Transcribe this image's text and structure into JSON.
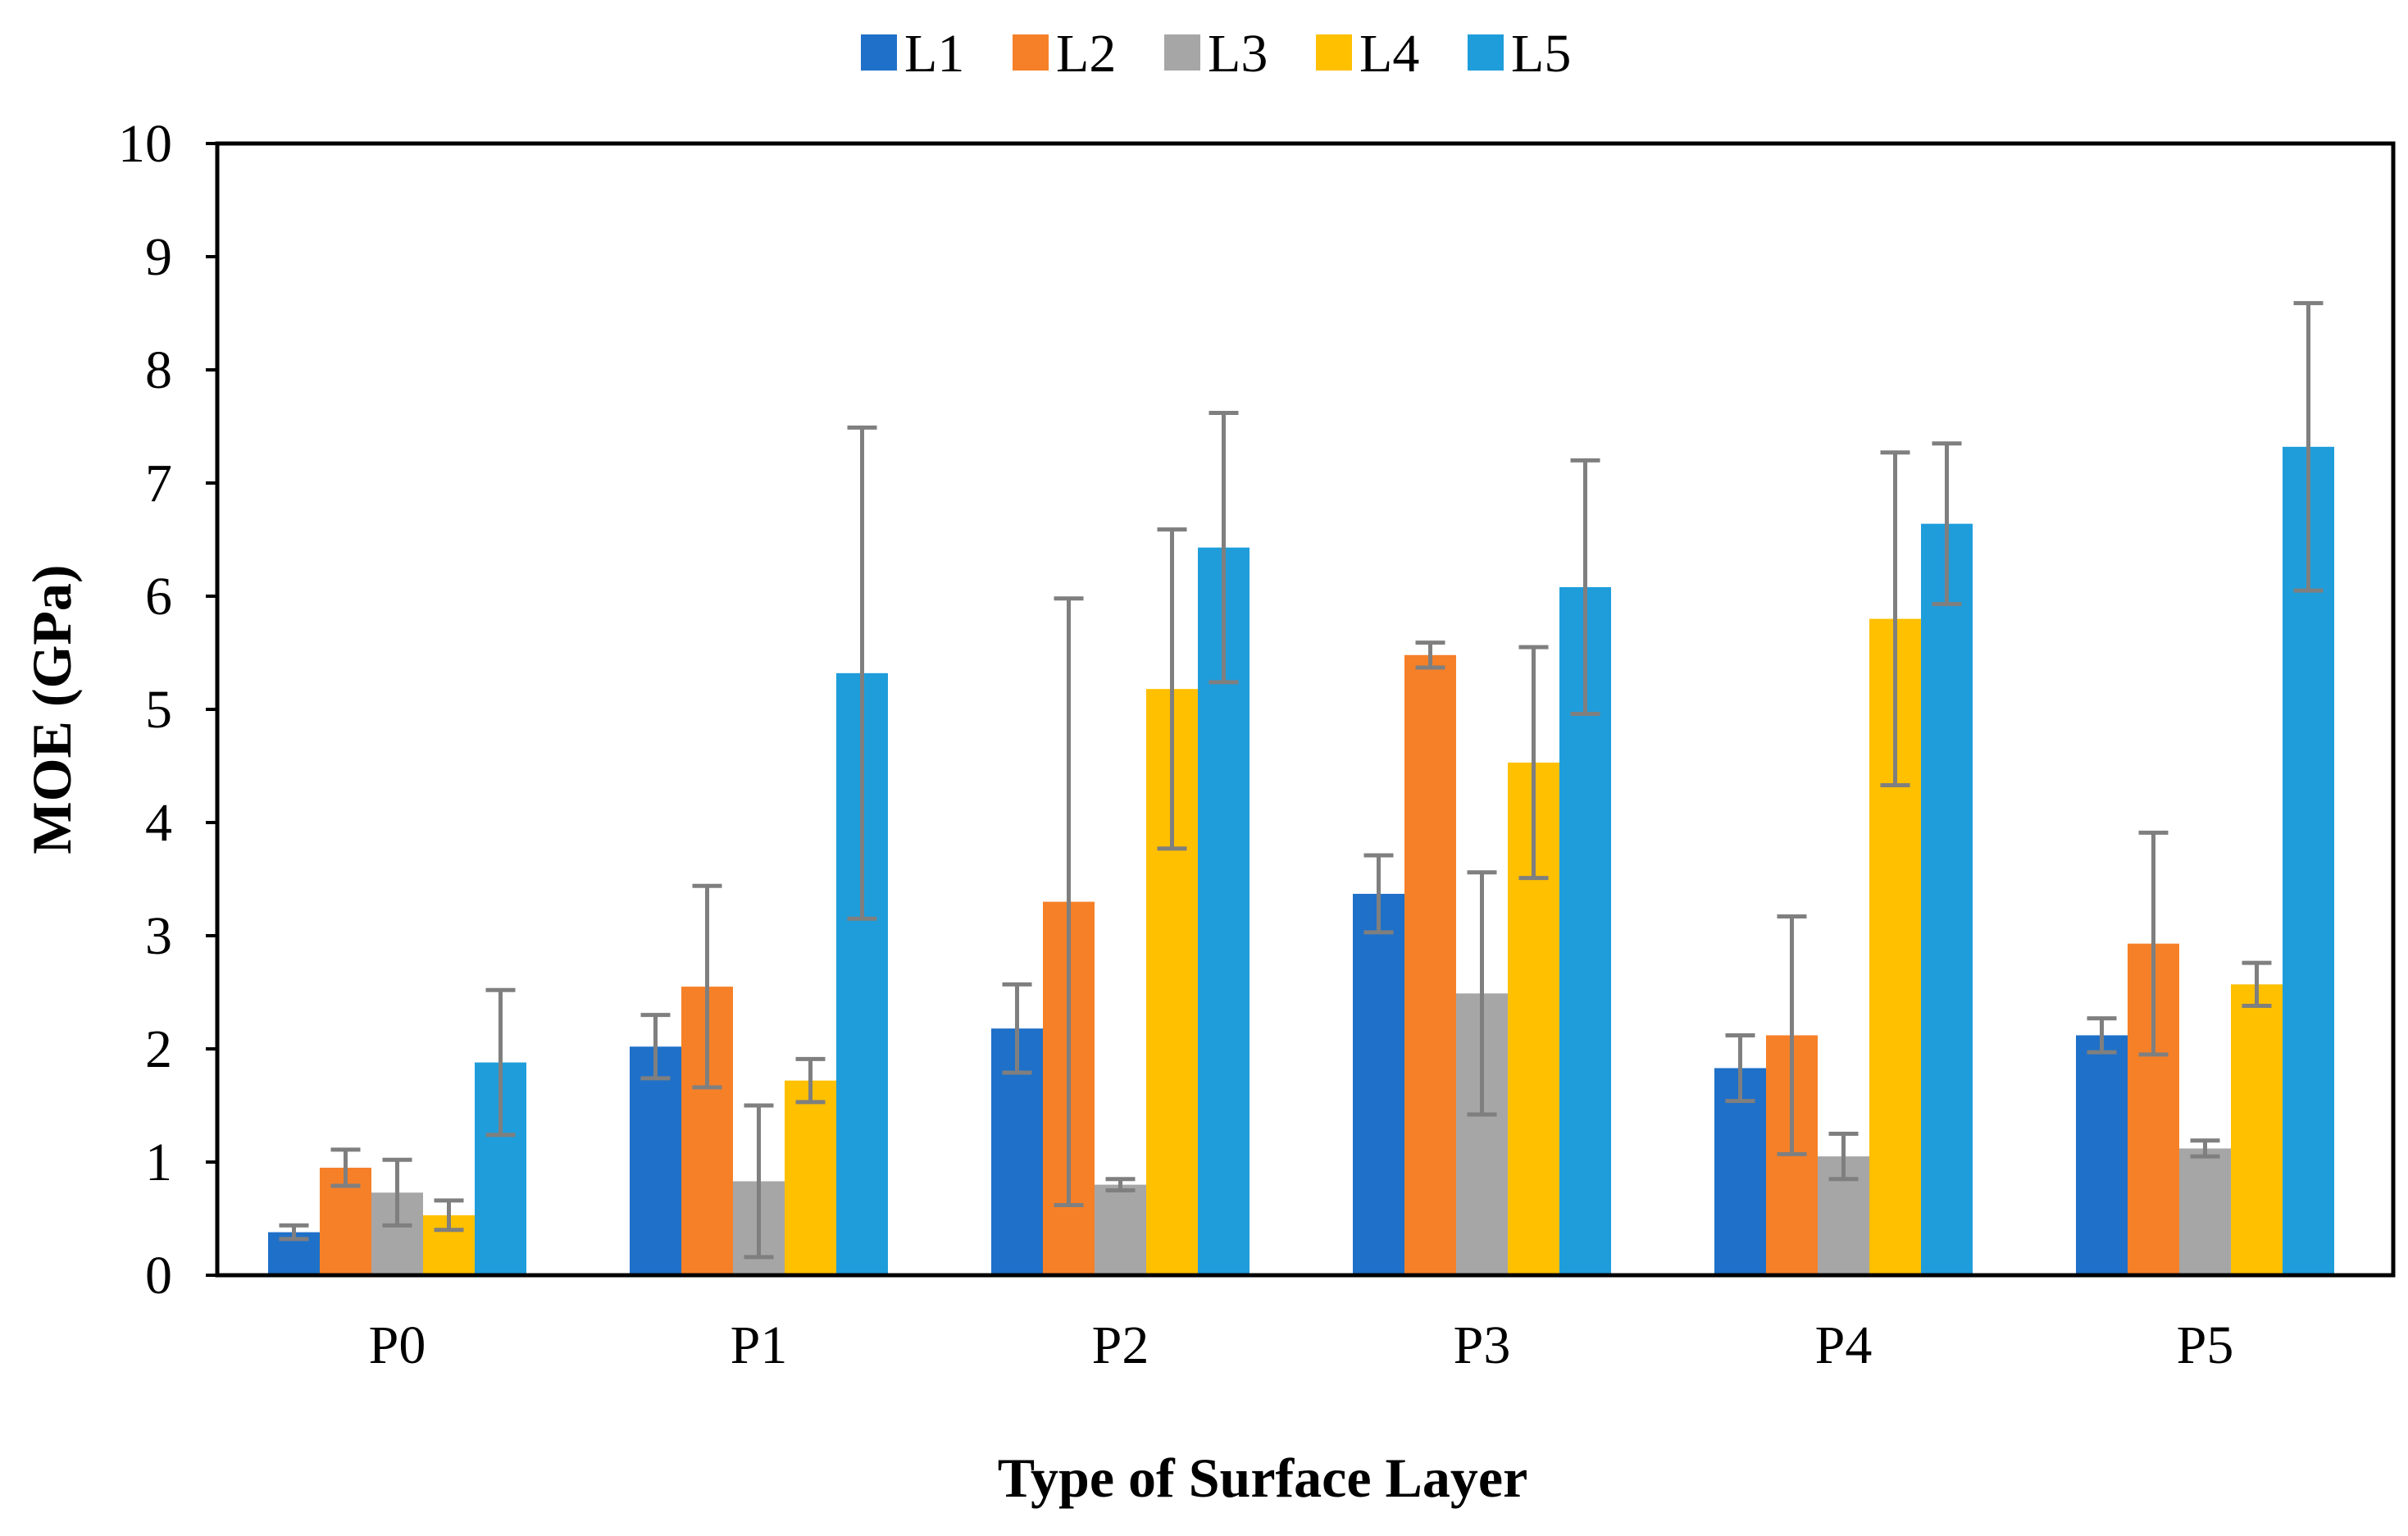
{
  "colors": {
    "L1": "#1f70c8",
    "L2": "#f68028",
    "L3": "#a6a6a6",
    "L4": "#ffc000",
    "L5": "#1f9ddb",
    "error_bar": "#7f7f7f",
    "axis": "#000000"
  },
  "chart_data": {
    "type": "bar",
    "title": "",
    "xlabel": "Type of Surface Layer",
    "ylabel": "MOE (GPa)",
    "ylim": [
      0,
      10
    ],
    "yticks": [
      0,
      1,
      2,
      3,
      4,
      5,
      6,
      7,
      8,
      9,
      10
    ],
    "grid": false,
    "legend_position": "top-center",
    "categories": [
      "P0",
      "P1",
      "P2",
      "P3",
      "P4",
      "P5"
    ],
    "series": [
      {
        "name": "L1",
        "values": [
          0.38,
          2.02,
          2.18,
          3.37,
          1.83,
          2.12
        ],
        "errors": [
          0.06,
          0.28,
          0.39,
          0.34,
          0.29,
          0.15
        ]
      },
      {
        "name": "L2",
        "values": [
          0.95,
          2.55,
          3.3,
          5.48,
          2.12,
          2.93
        ],
        "errors": [
          0.16,
          0.89,
          2.68,
          0.11,
          1.05,
          0.98
        ]
      },
      {
        "name": "L3",
        "values": [
          0.73,
          0.83,
          0.8,
          2.49,
          1.05,
          1.12
        ],
        "errors": [
          0.29,
          0.67,
          0.05,
          1.07,
          0.2,
          0.07
        ]
      },
      {
        "name": "L4",
        "values": [
          0.53,
          1.72,
          5.18,
          4.53,
          5.8,
          2.57
        ],
        "errors": [
          0.13,
          0.19,
          1.41,
          1.02,
          1.47,
          0.19
        ]
      },
      {
        "name": "L5",
        "values": [
          1.88,
          5.32,
          6.43,
          6.08,
          6.64,
          7.32
        ],
        "errors": [
          0.64,
          2.17,
          1.19,
          1.12,
          0.71,
          1.27
        ]
      }
    ]
  }
}
